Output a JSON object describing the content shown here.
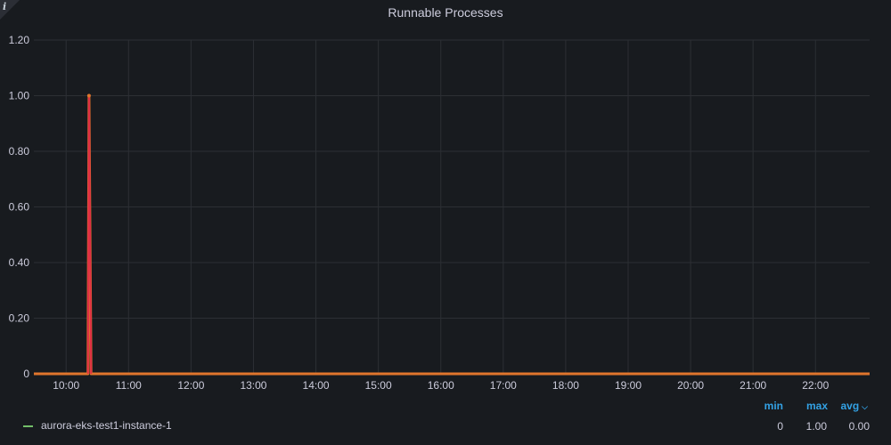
{
  "panel": {
    "info_label": "i",
    "title": "Runnable Processes"
  },
  "chart_data": {
    "type": "line",
    "title": "Runnable Processes",
    "xlabel": "",
    "ylabel": "",
    "y_ticks": [
      "0",
      "0.20",
      "0.40",
      "0.60",
      "0.80",
      "1.00",
      "1.20"
    ],
    "x_ticks": [
      "10:00",
      "11:00",
      "12:00",
      "13:00",
      "14:00",
      "15:00",
      "16:00",
      "17:00",
      "18:00",
      "19:00",
      "20:00",
      "21:00",
      "22:00"
    ],
    "ylim": [
      0,
      1.2
    ],
    "xlim": [
      "09:29",
      "22:52"
    ],
    "grid": true,
    "series": [
      {
        "name": "aurora-eks-test1-instance-1",
        "color": "#e0752d",
        "points": [
          {
            "x": "09:29",
            "y": 0
          },
          {
            "x": "10:21",
            "y": 0
          },
          {
            "x": "10:22",
            "y": 1.0
          },
          {
            "x": "10:24",
            "y": 0
          },
          {
            "x": "22:52",
            "y": 0
          }
        ]
      }
    ],
    "spike_color": "#e02f44",
    "legend": {
      "placement": "bottom",
      "swatch_color": "#73bf69",
      "headers": {
        "min": "min",
        "max": "max",
        "avg": "avg"
      },
      "sort_icon": "chevron-down-icon",
      "rows": [
        {
          "name": "aurora-eks-test1-instance-1",
          "min": "0",
          "max": "1.00",
          "avg": "0.00"
        }
      ]
    }
  }
}
